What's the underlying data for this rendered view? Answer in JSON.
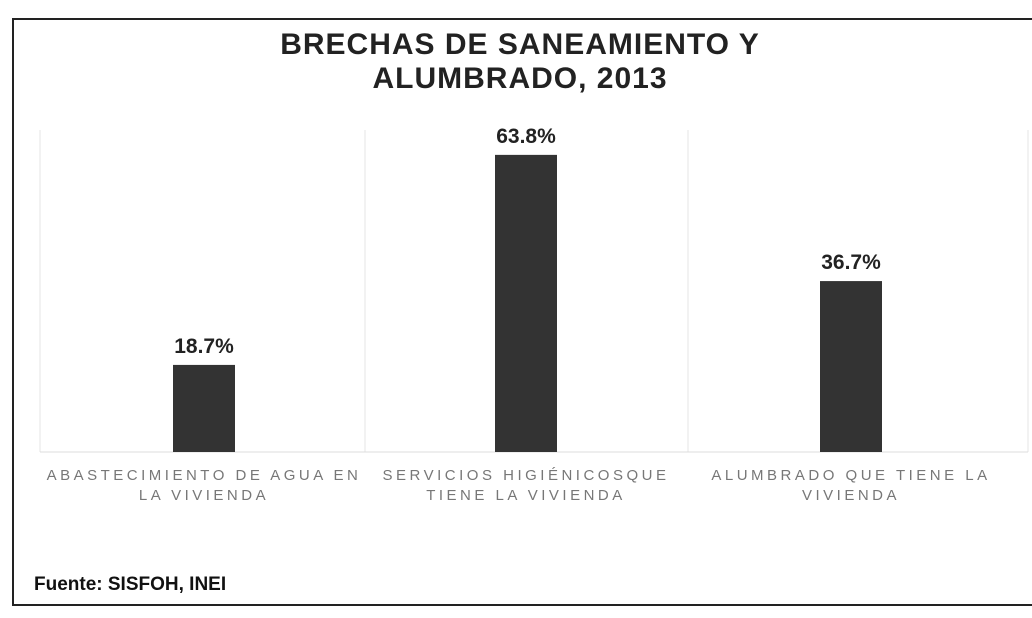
{
  "chart_data": {
    "type": "bar",
    "title": "BRECHAS DE SANEAMIENTO Y ALUMBRADO, 2013",
    "categories": [
      "ABASTECIMIENTO DE AGUA EN LA VIVIENDA",
      "SERVICIOS HIGIÉNICOSQUE TIENE LA VIVIENDA",
      "ALUMBRADO QUE TIENE LA VIVIENDA"
    ],
    "values": [
      18.7,
      63.8,
      36.7
    ],
    "value_labels": [
      "18.7%",
      "63.8%",
      "36.7%"
    ],
    "color": "#333333",
    "ylim": [
      0,
      70
    ],
    "source": "Fuente: SISFOH, INEI"
  }
}
